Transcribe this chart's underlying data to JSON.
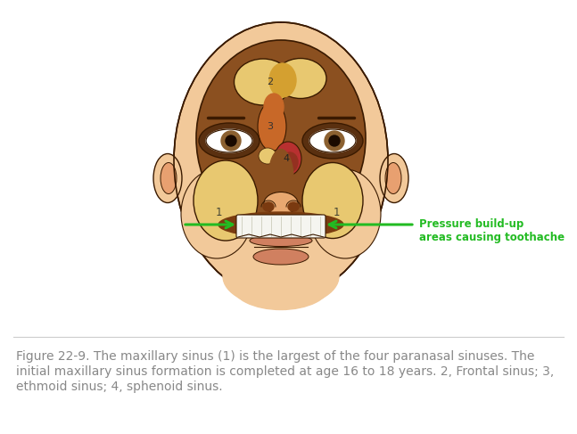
{
  "bg_color": "#ffffff",
  "caption_line1": "Figure 22-9. The maxillary sinus (1) is the largest of the four paranasal sinuses. The",
  "caption_line2": "initial maxillary sinus formation is completed at age 16 to 18 years. 2, Frontal sinus; 3,",
  "caption_line3": "ethmoid sinus; 4, sphenoid sinus.",
  "caption_color": "#888888",
  "caption_fontsize": 10.0,
  "divider_color": "#cccccc",
  "arrow_color": "#22bb22",
  "label_text": "Pressure build-up\nareas causing toothache",
  "label_fontsize": 8.5,
  "figsize": [
    6.47,
    4.87
  ],
  "dpi": 100,
  "skin_light": "#f2c99a",
  "skin_medium": "#e8a870",
  "skin_dark": "#8b5020",
  "skull_brown": "#7a3c10",
  "sinus_yellow_light": "#e8c870",
  "sinus_yellow": "#d4a030",
  "sinus_orange": "#c86828",
  "sinus_red": "#b83030",
  "sinus_red_dark": "#943020",
  "outline_color": "#3a1a00",
  "eye_brown": "#8b6030",
  "lip_color": "#d08060",
  "tooth_color": "#f5f5f0",
  "ear_inner": "#e8a070"
}
